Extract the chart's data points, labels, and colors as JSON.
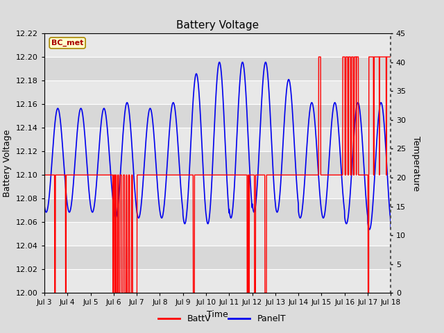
{
  "title": "Battery Voltage",
  "xlabel": "Time",
  "ylabel_left": "Battery Voltage",
  "ylabel_right": "Temperature",
  "ylim_left": [
    12.0,
    12.22
  ],
  "ylim_right": [
    0,
    45
  ],
  "yticks_left": [
    12.0,
    12.02,
    12.04,
    12.06,
    12.08,
    12.1,
    12.12,
    12.14,
    12.16,
    12.18,
    12.2,
    12.22
  ],
  "yticks_right": [
    0,
    5,
    10,
    15,
    20,
    25,
    30,
    35,
    40,
    45
  ],
  "annotation": "BC_met",
  "bg_color": "#dcdcdc",
  "plot_bg_color": "#e8e8e8",
  "band_light": "#e8e8e8",
  "band_dark": "#d8d8d8",
  "grid_color": "#ffffff",
  "batt_color": "#ff0000",
  "panel_color": "#0000ee",
  "x_tick_labels": [
    "Jul 3",
    "Jul 4",
    "Jul 5",
    "Jul 6",
    "Jul 7",
    "Jul 8",
    "Jul 9",
    "Jul 10",
    "Jul 11",
    "Jul 12",
    "Jul 13",
    "Jul 14",
    "Jul 15",
    "Jul 16",
    "Jul 17",
    "Jul 18"
  ],
  "figsize": [
    6.4,
    4.8
  ],
  "dpi": 100
}
